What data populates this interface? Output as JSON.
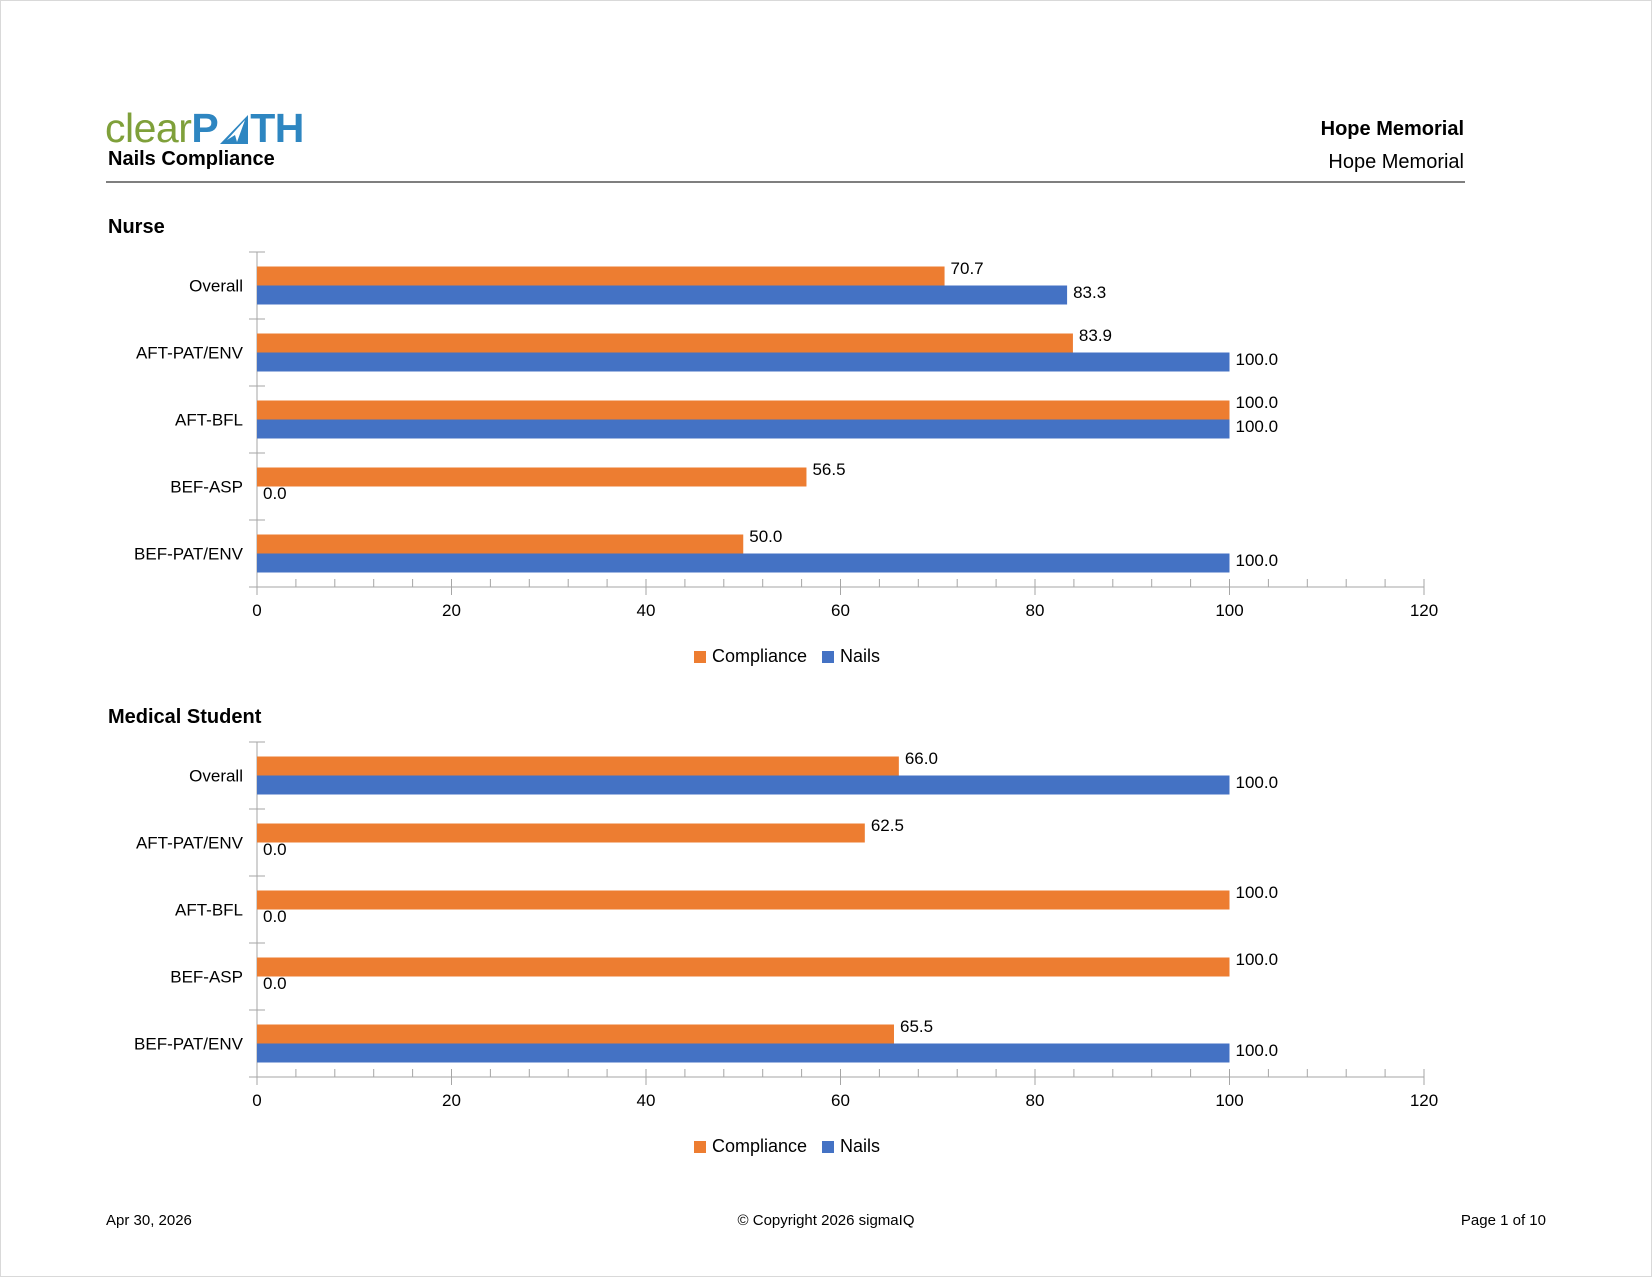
{
  "header": {
    "logo_text_a": "clear",
    "logo_text_b": "P",
    "logo_text_c": "TH",
    "report_title": "Nails Compliance",
    "org_title": "Hope Memorial",
    "org_subtitle": "Hope Memorial"
  },
  "colors": {
    "compliance": "#ed7d31",
    "nails": "#4472c4",
    "axis": "#a6a6a6",
    "logo_green": "#7fa03a",
    "logo_blue": "#2e86c1"
  },
  "sections": [
    {
      "title": "Nurse"
    },
    {
      "title": "Medical Student"
    }
  ],
  "chart_data": [
    {
      "type": "bar",
      "orientation": "horizontal",
      "title": "Nurse",
      "categories": [
        "Overall",
        "AFT-PAT/ENV",
        "AFT-BFL",
        "BEF-ASP",
        "BEF-PAT/ENV"
      ],
      "series": [
        {
          "name": "Compliance",
          "color": "#ed7d31",
          "values": [
            70.7,
            83.9,
            100.0,
            56.5,
            50.0
          ],
          "labels": [
            "70.7",
            "83.9",
            "100.0",
            "56.5",
            "50.0"
          ]
        },
        {
          "name": "Nails",
          "color": "#4472c4",
          "values": [
            83.3,
            100.0,
            100.0,
            0.0,
            100.0
          ],
          "labels": [
            "83.3",
            "100.0",
            "100.0",
            "0.0",
            "100.0"
          ]
        }
      ],
      "xlim": [
        0,
        120
      ],
      "xticks": [
        "0",
        "20",
        "40",
        "60",
        "80",
        "100",
        "120"
      ],
      "legend": "bottom-center",
      "grid": false
    },
    {
      "type": "bar",
      "orientation": "horizontal",
      "title": "Medical Student",
      "categories": [
        "Overall",
        "AFT-PAT/ENV",
        "AFT-BFL",
        "BEF-ASP",
        "BEF-PAT/ENV"
      ],
      "series": [
        {
          "name": "Compliance",
          "color": "#ed7d31",
          "values": [
            66.0,
            62.5,
            100.0,
            100.0,
            65.5
          ],
          "labels": [
            "66.0",
            "62.5",
            "100.0",
            "100.0",
            "65.5"
          ]
        },
        {
          "name": "Nails",
          "color": "#4472c4",
          "values": [
            100.0,
            0.0,
            0.0,
            0.0,
            100.0
          ],
          "labels": [
            "100.0",
            "0.0",
            "0.0",
            "0.0",
            "100.0"
          ]
        }
      ],
      "xlim": [
        0,
        120
      ],
      "xticks": [
        "0",
        "20",
        "40",
        "60",
        "80",
        "100",
        "120"
      ],
      "legend": "bottom-center",
      "grid": false
    }
  ],
  "footer": {
    "date": "Apr 30, 2026",
    "copyright": "© Copyright 2026 sigmaIQ",
    "page": "Page 1 of 10"
  }
}
